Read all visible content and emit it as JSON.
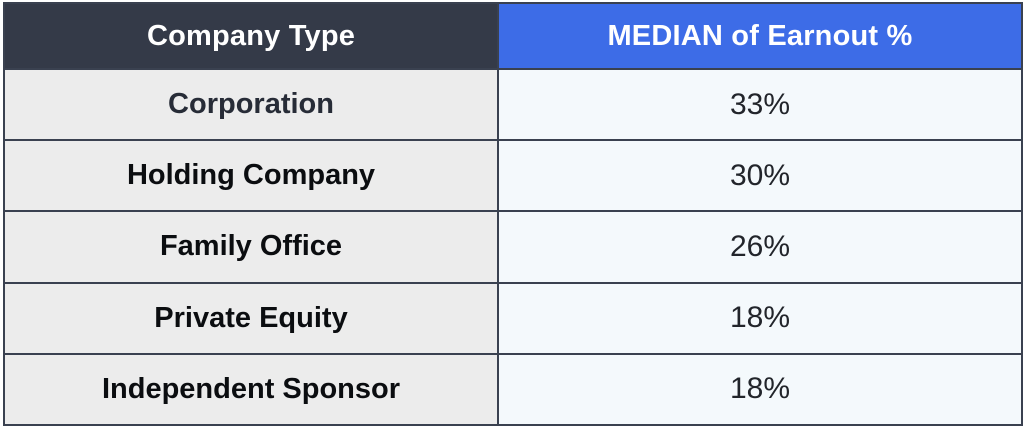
{
  "table": {
    "columns": [
      {
        "label": "Company Type"
      },
      {
        "label": "MEDIAN of Earnout %"
      }
    ],
    "rows": [
      {
        "company_type": "Corporation",
        "median_earnout": "33%"
      },
      {
        "company_type": "Holding Company",
        "median_earnout": "30%"
      },
      {
        "company_type": "Family Office",
        "median_earnout": "26%"
      },
      {
        "company_type": "Private Equity",
        "median_earnout": "18%"
      },
      {
        "company_type": "Independent Sponsor",
        "median_earnout": "18%"
      }
    ]
  },
  "colors": {
    "header_dark_bg": "#343a48",
    "header_blue_bg": "#3d6ce7",
    "header_text": "#ffffff",
    "row_label_bg": "#ececec",
    "row_value_bg": "#f4f9fc",
    "border": "#3a4150",
    "label_text": "#0b0d10",
    "label_text_first": "#272c37",
    "value_text": "#22252b"
  },
  "chart_data": {
    "type": "table",
    "columns": [
      "Company Type",
      "MEDIAN of Earnout %"
    ],
    "categories": [
      "Corporation",
      "Holding Company",
      "Family Office",
      "Private Equity",
      "Independent Sponsor"
    ],
    "values": [
      33,
      30,
      26,
      18,
      18
    ],
    "value_format": "percent",
    "title": "",
    "layout_hints": {
      "header_style": "dark-left-blue-right",
      "grid": "on",
      "alignment": "center"
    }
  }
}
